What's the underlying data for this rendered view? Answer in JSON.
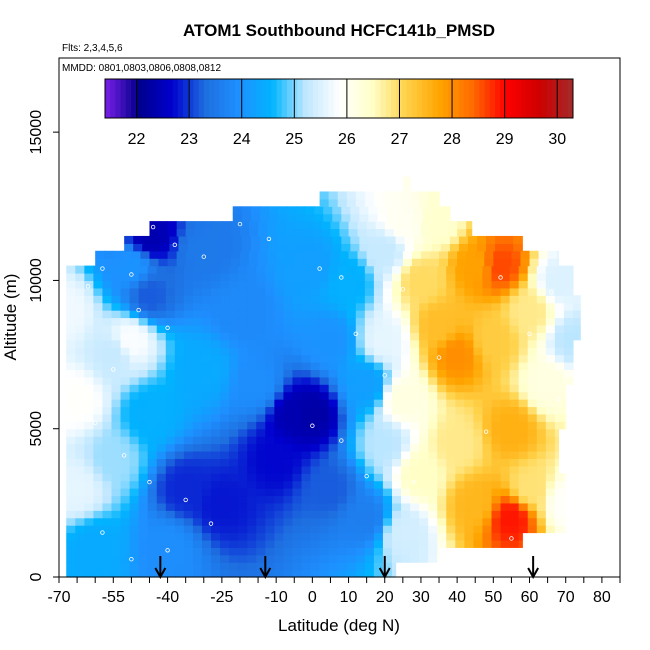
{
  "chart_data": {
    "type": "heatmap",
    "title": "ATOM1 Southbound HCFC141b_PMSD",
    "subtitle_flights": "Flts: 2,3,4,5,6",
    "subtitle_dates": "MMDD: 0801,0803,0806,0808,0812",
    "xlabel": "Latitude (deg N)",
    "ylabel": "Altitude (m)",
    "xlim": [
      -70,
      85
    ],
    "ylim": [
      0,
      17500
    ],
    "x_ticks": [
      -70,
      -55,
      -40,
      -25,
      -10,
      0,
      10,
      20,
      30,
      40,
      50,
      60,
      70,
      80
    ],
    "x_tick_labels": [
      "-70",
      "-55",
      "-40",
      "-25",
      "-10",
      "0",
      "10",
      "20",
      "30",
      "40",
      "50",
      "60",
      "70",
      "80"
    ],
    "x_minor_step": 5,
    "y_ticks": [
      0,
      5000,
      10000,
      15000
    ],
    "y_tick_labels": [
      "0",
      "5000",
      "10000",
      "15000"
    ],
    "colorbar": {
      "min": 21.4,
      "max": 30.3,
      "ticks": [
        22,
        23,
        24,
        25,
        26,
        27,
        28,
        29,
        30
      ],
      "tick_labels": [
        "22",
        "23",
        "24",
        "25",
        "26",
        "27",
        "28",
        "29",
        "30"
      ],
      "colors": [
        "#7a1fe8",
        "#00008b",
        "#0000cd",
        "#1e6fe0",
        "#1e90ff",
        "#00b4ff",
        "#bfe7ff",
        "#ffffff",
        "#ffffc8",
        "#ffd24a",
        "#ffa500",
        "#ff6a00",
        "#ff0000",
        "#cd0000",
        "#a52a2a"
      ]
    },
    "grid": false,
    "altitude_profile": [
      {
        "y": 500,
        "xmin": -68,
        "xmax": 23
      },
      {
        "y": 1000,
        "xmin": -68,
        "xmax": 35
      },
      {
        "y": 1500,
        "xmin": -68,
        "xmax": 58
      },
      {
        "y": 2500,
        "xmin": -68,
        "xmax": 70
      },
      {
        "y": 3500,
        "xmin": -68,
        "xmax": 70
      },
      {
        "y": 5000,
        "xmin": -68,
        "xmax": 68
      },
      {
        "y": 6500,
        "xmin": -68,
        "xmax": 70
      },
      {
        "y": 8000,
        "xmin": -68,
        "xmax": 72
      },
      {
        "y": 9500,
        "xmin": -68,
        "xmax": 74
      },
      {
        "y": 10500,
        "xmin": -68,
        "xmax": 72
      },
      {
        "y": 11000,
        "xmin": -60,
        "xmax": 68
      },
      {
        "y": 11500,
        "xmin": -52,
        "xmax": 58
      },
      {
        "y": 12000,
        "xmin": -45,
        "xmax": 44
      },
      {
        "y": 12500,
        "xmin": -22,
        "xmax": 38
      },
      {
        "y": 13000,
        "xmin": 2,
        "xmax": 35
      },
      {
        "y": 13500,
        "xmin": 25,
        "xmax": 27
      }
    ],
    "field_anchors": [
      {
        "x": -68,
        "y": 9000,
        "v": 25.7
      },
      {
        "x": -65,
        "y": 6000,
        "v": 25.9
      },
      {
        "x": -65,
        "y": 3000,
        "v": 25.6
      },
      {
        "x": -60,
        "y": 1000,
        "v": 24.4
      },
      {
        "x": -55,
        "y": 7500,
        "v": 25.3
      },
      {
        "x": -55,
        "y": 4000,
        "v": 25.1
      },
      {
        "x": -50,
        "y": 10500,
        "v": 24.0
      },
      {
        "x": -50,
        "y": 8000,
        "v": 25.8
      },
      {
        "x": -45,
        "y": 11500,
        "v": 22.4
      },
      {
        "x": -45,
        "y": 9500,
        "v": 23.2
      },
      {
        "x": -45,
        "y": 5500,
        "v": 24.5
      },
      {
        "x": -40,
        "y": 1000,
        "v": 23.9
      },
      {
        "x": -35,
        "y": 3000,
        "v": 22.9
      },
      {
        "x": -30,
        "y": 11000,
        "v": 23.5
      },
      {
        "x": -30,
        "y": 7000,
        "v": 24.4
      },
      {
        "x": -25,
        "y": 2500,
        "v": 22.8
      },
      {
        "x": -20,
        "y": 9000,
        "v": 23.8
      },
      {
        "x": -15,
        "y": 6500,
        "v": 23.9
      },
      {
        "x": -10,
        "y": 4000,
        "v": 22.7
      },
      {
        "x": -5,
        "y": 5500,
        "v": 22.4
      },
      {
        "x": 0,
        "y": 5500,
        "v": 22.3
      },
      {
        "x": 0,
        "y": 10500,
        "v": 24.2
      },
      {
        "x": 5,
        "y": 3000,
        "v": 23.2
      },
      {
        "x": 5,
        "y": 8000,
        "v": 24.0
      },
      {
        "x": 10,
        "y": 10000,
        "v": 24.5
      },
      {
        "x": 15,
        "y": 6500,
        "v": 24.2
      },
      {
        "x": 15,
        "y": 2000,
        "v": 23.6
      },
      {
        "x": 20,
        "y": 11000,
        "v": 25.3
      },
      {
        "x": 20,
        "y": 8000,
        "v": 25.6
      },
      {
        "x": 20,
        "y": 4500,
        "v": 25.2
      },
      {
        "x": 25,
        "y": 12000,
        "v": 26.0
      },
      {
        "x": 25,
        "y": 6000,
        "v": 26.2
      },
      {
        "x": 25,
        "y": 1500,
        "v": 25.4
      },
      {
        "x": 30,
        "y": 10000,
        "v": 27.0
      },
      {
        "x": 30,
        "y": 3500,
        "v": 26.5
      },
      {
        "x": 35,
        "y": 8500,
        "v": 27.4
      },
      {
        "x": 35,
        "y": 12000,
        "v": 26.4
      },
      {
        "x": 40,
        "y": 7500,
        "v": 28.0
      },
      {
        "x": 40,
        "y": 4500,
        "v": 26.8
      },
      {
        "x": 45,
        "y": 10500,
        "v": 27.8
      },
      {
        "x": 45,
        "y": 2500,
        "v": 27.5
      },
      {
        "x": 50,
        "y": 8000,
        "v": 27.2
      },
      {
        "x": 52,
        "y": 10500,
        "v": 28.6
      },
      {
        "x": 55,
        "y": 2000,
        "v": 28.9
      },
      {
        "x": 55,
        "y": 5000,
        "v": 27.6
      },
      {
        "x": 60,
        "y": 9000,
        "v": 26.8
      },
      {
        "x": 60,
        "y": 3000,
        "v": 26.9
      },
      {
        "x": 65,
        "y": 6500,
        "v": 26.2
      },
      {
        "x": 68,
        "y": 10000,
        "v": 25.5
      },
      {
        "x": 70,
        "y": 2500,
        "v": 25.9
      },
      {
        "x": 72,
        "y": 8000,
        "v": 25.2
      }
    ],
    "sample_points": [
      {
        "x": -62,
        "y": 9800
      },
      {
        "x": -58,
        "y": 10400
      },
      {
        "x": -50,
        "y": 10200
      },
      {
        "x": -44,
        "y": 11800
      },
      {
        "x": -38,
        "y": 11200
      },
      {
        "x": -30,
        "y": 10800
      },
      {
        "x": -20,
        "y": 11900
      },
      {
        "x": -12,
        "y": 11400
      },
      {
        "x": 2,
        "y": 10400
      },
      {
        "x": 8,
        "y": 10100
      },
      {
        "x": -48,
        "y": 9000
      },
      {
        "x": -40,
        "y": 8400
      },
      {
        "x": -55,
        "y": 7000
      },
      {
        "x": -60,
        "y": 5200
      },
      {
        "x": -52,
        "y": 4100
      },
      {
        "x": -45,
        "y": 3200
      },
      {
        "x": -35,
        "y": 2600
      },
      {
        "x": -28,
        "y": 1800
      },
      {
        "x": -58,
        "y": 1500
      },
      {
        "x": -50,
        "y": 600
      },
      {
        "x": -40,
        "y": 900
      },
      {
        "x": 0,
        "y": 5100
      },
      {
        "x": 8,
        "y": 4600
      },
      {
        "x": 15,
        "y": 3400
      },
      {
        "x": 20,
        "y": 6800
      },
      {
        "x": 12,
        "y": 8200
      },
      {
        "x": 25,
        "y": 9700
      },
      {
        "x": 35,
        "y": 7400
      },
      {
        "x": 28,
        "y": 3200
      },
      {
        "x": 48,
        "y": 4900
      },
      {
        "x": 55,
        "y": 1300
      },
      {
        "x": 60,
        "y": 8200
      },
      {
        "x": 66,
        "y": 9600
      },
      {
        "x": 68,
        "y": 6000
      },
      {
        "x": 72,
        "y": 3200
      },
      {
        "x": 52,
        "y": 10100
      }
    ],
    "arrows_x": [
      -42,
      -13,
      20,
      61
    ]
  }
}
